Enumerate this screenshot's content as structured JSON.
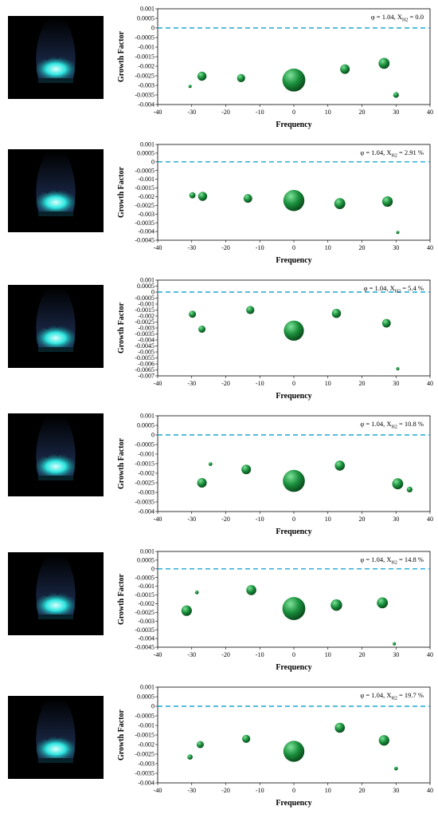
{
  "colors": {
    "bubble": "#1a8f3c",
    "bubble_light": "#7fe39a",
    "bubble_dark": "#0b4d1d",
    "reference_line": "#1aa7d6",
    "flame": "#2ee6e0"
  },
  "chart_data": [
    {
      "type": "scatter",
      "annotation": "φ = 1.04, X",
      "annotation_sub": "H2",
      "annotation_tail": " = 0.0",
      "xlabel": "Frequency",
      "ylabel": "Growth Factor",
      "xlim": [
        -40,
        40
      ],
      "ylim": [
        -0.004,
        0.001
      ],
      "xticks": [
        "-40",
        "-30",
        "-20",
        "-10",
        "0",
        "10",
        "20",
        "30",
        "40"
      ],
      "yticks": [
        "0.001",
        "0.0005",
        "0",
        "-0.0005",
        "-0.001",
        "-0.0015",
        "-0.002",
        "-0.0025",
        "-0.003",
        "-0.0035",
        "-0.004"
      ],
      "reference_line_y": 0,
      "points": [
        {
          "x": -30.5,
          "y": -0.00305,
          "size": 0.35
        },
        {
          "x": -27,
          "y": -0.00252,
          "size": 0.95
        },
        {
          "x": -15.5,
          "y": -0.00262,
          "size": 0.85
        },
        {
          "x": 0,
          "y": -0.00272,
          "size": 2.4
        },
        {
          "x": 15,
          "y": -0.00215,
          "size": 1.0
        },
        {
          "x": 26.5,
          "y": -0.00185,
          "size": 1.15
        },
        {
          "x": 30,
          "y": -0.0035,
          "size": 0.6
        }
      ]
    },
    {
      "type": "scatter",
      "annotation": "φ = 1.04, X",
      "annotation_sub": "H2",
      "annotation_tail": " = 2.91 %",
      "xlabel": "Frequency",
      "ylabel": "Growth Factor",
      "xlim": [
        -40,
        40
      ],
      "ylim": [
        -0.0045,
        0.001
      ],
      "xticks": [
        "-40",
        "-30",
        "-20",
        "-10",
        "0",
        "10",
        "20",
        "30",
        "40"
      ],
      "yticks": [
        "0.001",
        "0.0005",
        "0",
        "-0.0005",
        "-0.001",
        "-0.0015",
        "-0.002",
        "-0.0025",
        "-0.003",
        "-0.0035",
        "-0.004",
        "-0.0045"
      ],
      "reference_line_y": 0,
      "points": [
        {
          "x": -29.8,
          "y": -0.00192,
          "size": 0.65
        },
        {
          "x": -26.8,
          "y": -0.00198,
          "size": 0.95
        },
        {
          "x": -13.5,
          "y": -0.0021,
          "size": 0.9
        },
        {
          "x": 0,
          "y": -0.00222,
          "size": 2.2
        },
        {
          "x": 13.5,
          "y": -0.0024,
          "size": 1.15
        },
        {
          "x": 27.5,
          "y": -0.00228,
          "size": 1.1
        },
        {
          "x": 30.5,
          "y": -0.00405,
          "size": 0.35
        }
      ]
    },
    {
      "type": "scatter",
      "annotation": "φ = 1.04, X",
      "annotation_sub": "H2",
      "annotation_tail": " = 5.4 %",
      "xlabel": "Frequency",
      "ylabel": "Growth Factor",
      "xlim": [
        -40,
        40
      ],
      "ylim": [
        -0.007,
        0.001
      ],
      "xticks": [
        "-40",
        "-30",
        "-20",
        "-10",
        "0",
        "10",
        "20",
        "30",
        "40"
      ],
      "yticks": [
        "0.001",
        "0.0005",
        "0",
        "-0.0005",
        "-0.001",
        "-0.0015",
        "-0.002",
        "-0.0025",
        "-0.003",
        "-0.0035",
        "-0.004",
        "-0.0045",
        "-0.005",
        "-0.0055",
        "-0.006",
        "-0.0065",
        "-0.007"
      ],
      "reference_line_y": 0,
      "points": [
        {
          "x": -29.8,
          "y": -0.00185,
          "size": 0.75
        },
        {
          "x": -27,
          "y": -0.0031,
          "size": 0.75
        },
        {
          "x": -12.8,
          "y": -0.0015,
          "size": 0.85
        },
        {
          "x": 0,
          "y": -0.00322,
          "size": 2.1
        },
        {
          "x": 12.5,
          "y": -0.00178,
          "size": 0.95
        },
        {
          "x": 27.2,
          "y": -0.0026,
          "size": 0.9
        },
        {
          "x": 30.5,
          "y": -0.0064,
          "size": 0.35
        }
      ]
    },
    {
      "type": "scatter",
      "annotation": "φ = 1.04, X",
      "annotation_sub": "H2",
      "annotation_tail": " = 10.8 %",
      "xlabel": "Frequency",
      "ylabel": "Growth Factor",
      "xlim": [
        -40,
        40
      ],
      "ylim": [
        -0.004,
        0.001
      ],
      "xticks": [
        "-40",
        "-30",
        "-20",
        "-10",
        "0",
        "10",
        "20",
        "30",
        "40"
      ],
      "yticks": [
        "0.001",
        "0.0005",
        "0",
        "-0.0005",
        "-0.001",
        "-0.0015",
        "-0.002",
        "-0.0025",
        "-0.003",
        "-0.0035",
        "-0.004"
      ],
      "reference_line_y": 0,
      "points": [
        {
          "x": -24.5,
          "y": -0.00152,
          "size": 0.4
        },
        {
          "x": -27,
          "y": -0.0025,
          "size": 1.0
        },
        {
          "x": -14,
          "y": -0.0018,
          "size": 1.0
        },
        {
          "x": 0,
          "y": -0.0024,
          "size": 2.3
        },
        {
          "x": 13.5,
          "y": -0.0016,
          "size": 1.05
        },
        {
          "x": 30.5,
          "y": -0.00255,
          "size": 1.15
        },
        {
          "x": 34,
          "y": -0.00285,
          "size": 0.6
        }
      ]
    },
    {
      "type": "scatter",
      "annotation": "φ = 1.04, X",
      "annotation_sub": "H2",
      "annotation_tail": " = 14.8 %",
      "xlabel": "Frequency",
      "ylabel": "Growth Factor",
      "xlim": [
        -40,
        40
      ],
      "ylim": [
        -0.0045,
        0.001
      ],
      "xticks": [
        "-40",
        "-30",
        "-20",
        "-10",
        "0",
        "10",
        "20",
        "30",
        "40"
      ],
      "yticks": [
        "0.001",
        "0.0005",
        "0",
        "-0.0005",
        "-0.001",
        "-0.0015",
        "-0.002",
        "-0.0025",
        "-0.003",
        "-0.0035",
        "-0.004",
        "-0.0045"
      ],
      "reference_line_y": 0,
      "points": [
        {
          "x": -28.5,
          "y": -0.00135,
          "size": 0.4
        },
        {
          "x": -31.5,
          "y": -0.0024,
          "size": 1.1
        },
        {
          "x": -12.5,
          "y": -0.00122,
          "size": 1.05
        },
        {
          "x": 0,
          "y": -0.00228,
          "size": 2.4
        },
        {
          "x": 12.5,
          "y": -0.00208,
          "size": 1.2
        },
        {
          "x": 26,
          "y": -0.00195,
          "size": 1.15
        },
        {
          "x": 29.5,
          "y": -0.0043,
          "size": 0.35
        }
      ]
    },
    {
      "type": "scatter",
      "annotation": "φ = 1.04, X",
      "annotation_sub": "H2",
      "annotation_tail": " = 19.7 %",
      "xlabel": "Frequency",
      "ylabel": "Growth Factor",
      "xlim": [
        -40,
        40
      ],
      "ylim": [
        -0.004,
        0.001
      ],
      "xticks": [
        "-40",
        "-30",
        "-20",
        "-10",
        "0",
        "10",
        "20",
        "30",
        "40"
      ],
      "yticks": [
        "0.001",
        "0.0005",
        "0",
        "-0.0005",
        "-0.001",
        "-0.0015",
        "-0.002",
        "-0.0025",
        "-0.003",
        "-0.0035",
        "-0.004"
      ],
      "reference_line_y": 0,
      "points": [
        {
          "x": -30.5,
          "y": -0.00265,
          "size": 0.55
        },
        {
          "x": -27.5,
          "y": -0.002,
          "size": 0.75
        },
        {
          "x": -14,
          "y": -0.0017,
          "size": 0.85
        },
        {
          "x": 0,
          "y": -0.00235,
          "size": 2.2
        },
        {
          "x": 13.5,
          "y": -0.00112,
          "size": 1.05
        },
        {
          "x": 26.5,
          "y": -0.00178,
          "size": 1.1
        },
        {
          "x": 30,
          "y": -0.00325,
          "size": 0.4
        }
      ]
    }
  ]
}
